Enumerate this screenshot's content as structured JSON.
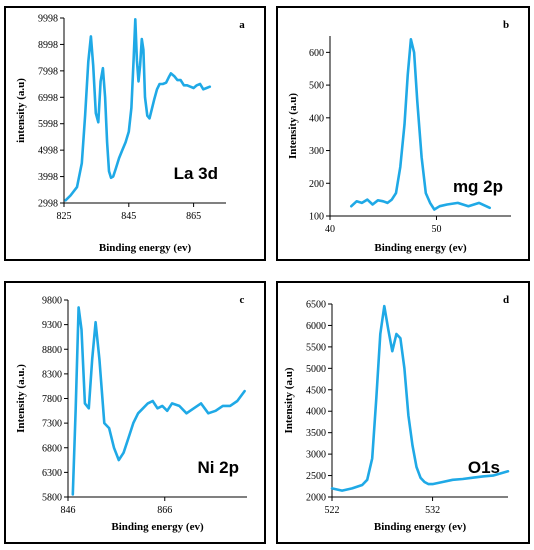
{
  "chart_data": [
    {
      "type": "line",
      "panel": "a",
      "annotation": "La 3d",
      "xlabel": "Binding energy (ev)",
      "ylabel": "intensity (a.u)",
      "xlim": [
        825,
        875
      ],
      "ylim": [
        2998,
        9998
      ],
      "xticks": [
        825,
        845,
        865
      ],
      "yticks": [
        2998,
        3998,
        4998,
        5998,
        6998,
        7998,
        8998,
        9998
      ],
      "color": "#1fa9e6",
      "series": [
        {
          "x": [
            825.5,
            827,
            829,
            830.5,
            831.5,
            832.5,
            833.3,
            834,
            834.8,
            835.6,
            836.3,
            837,
            837.7,
            838.3,
            838.9,
            839.5,
            840.2,
            841,
            842,
            843,
            844,
            845,
            845.8,
            846.5,
            847,
            847.5,
            848,
            848.5,
            849,
            849.5,
            850,
            850.7,
            851.4,
            852,
            852.8,
            853.7,
            854.5,
            855.5,
            856.5,
            857.3,
            858,
            859,
            860,
            861,
            862,
            863,
            864,
            865,
            866,
            867,
            868,
            869,
            870
          ],
          "y": [
            3100,
            3280,
            3600,
            4500,
            6300,
            8350,
            9300,
            8200,
            6400,
            6050,
            7600,
            8100,
            7000,
            5300,
            4200,
            3950,
            4000,
            4300,
            4700,
            5000,
            5300,
            5700,
            6600,
            8500,
            9950,
            8400,
            7600,
            8200,
            9200,
            8800,
            7000,
            6300,
            6200,
            6500,
            6900,
            7300,
            7500,
            7500,
            7550,
            7750,
            7900,
            7800,
            7650,
            7650,
            7450,
            7450,
            7400,
            7350,
            7450,
            7500,
            7300,
            7350,
            7400
          ]
        }
      ]
    },
    {
      "type": "line",
      "panel": "b",
      "annotation": "mg 2p",
      "xlabel": "Binding energy (ev)",
      "ylabel": "Intensity (a.u)",
      "xlim": [
        40,
        57
      ],
      "ylim": [
        100,
        650
      ],
      "xticks": [
        40,
        50
      ],
      "yticks": [
        100,
        200,
        300,
        400,
        500,
        600
      ],
      "color": "#1fa9e6",
      "series": [
        {
          "x": [
            42,
            42.5,
            43,
            43.5,
            44,
            44.5,
            45,
            45.4,
            45.8,
            46.2,
            46.6,
            47,
            47.3,
            47.6,
            47.9,
            48.2,
            48.6,
            49,
            49.4,
            49.8,
            50.3,
            51,
            52,
            53,
            54,
            55
          ],
          "y": [
            130,
            145,
            140,
            150,
            135,
            148,
            145,
            140,
            150,
            170,
            250,
            380,
            530,
            640,
            600,
            450,
            280,
            170,
            140,
            120,
            130,
            135,
            140,
            130,
            140,
            125
          ]
        }
      ]
    },
    {
      "type": "line",
      "panel": "c",
      "annotation": "Ni 2p",
      "xlabel": "Binding energy (ev)",
      "ylabel": "Intensity (a.u.)",
      "xlim": [
        846,
        883
      ],
      "ylim": [
        5800,
        9800
      ],
      "xticks": [
        846,
        866
      ],
      "yticks": [
        5800,
        6300,
        6800,
        7300,
        7800,
        8300,
        8800,
        9300,
        9800
      ],
      "color": "#1fa9e6",
      "series": [
        {
          "x": [
            847,
            847.6,
            848.2,
            848.8,
            849.5,
            850.3,
            851,
            851.7,
            852.5,
            853.5,
            854.5,
            855.5,
            856.5,
            857.5,
            858.5,
            859.5,
            860.5,
            861.5,
            862.5,
            863.5,
            864.5,
            865.5,
            866.5,
            867.5,
            869,
            870.5,
            872,
            873.5,
            875,
            876.5,
            878,
            879.5,
            881,
            882.5
          ],
          "y": [
            5850,
            7600,
            9650,
            9200,
            7700,
            7600,
            8600,
            9350,
            8600,
            7300,
            7200,
            6800,
            6550,
            6700,
            7000,
            7300,
            7500,
            7600,
            7700,
            7750,
            7600,
            7650,
            7550,
            7700,
            7650,
            7500,
            7600,
            7700,
            7500,
            7550,
            7650,
            7650,
            7750,
            7950
          ]
        }
      ]
    },
    {
      "type": "line",
      "panel": "d",
      "annotation": "O1s",
      "xlabel": "Binding energy (ev)",
      "ylabel": "Intensity (a.u)",
      "xlim": [
        522,
        539.5
      ],
      "ylim": [
        2000,
        6500
      ],
      "xticks": [
        522,
        532
      ],
      "yticks": [
        2000,
        2500,
        3000,
        3500,
        4000,
        4500,
        5000,
        5500,
        6000,
        6500
      ],
      "color": "#1fa9e6",
      "series": [
        {
          "x": [
            522,
            523,
            524,
            525,
            525.5,
            526,
            526.4,
            526.8,
            527.2,
            527.6,
            528,
            528.4,
            528.8,
            529.2,
            529.6,
            530,
            530.4,
            530.8,
            531.2,
            531.6,
            532,
            533,
            534,
            535,
            536,
            537,
            538,
            539.5
          ],
          "y": [
            2200,
            2150,
            2200,
            2280,
            2400,
            2900,
            4300,
            5800,
            6450,
            5900,
            5400,
            5800,
            5700,
            5000,
            3900,
            3200,
            2700,
            2450,
            2350,
            2300,
            2300,
            2350,
            2400,
            2420,
            2450,
            2480,
            2500,
            2600
          ]
        }
      ]
    }
  ]
}
